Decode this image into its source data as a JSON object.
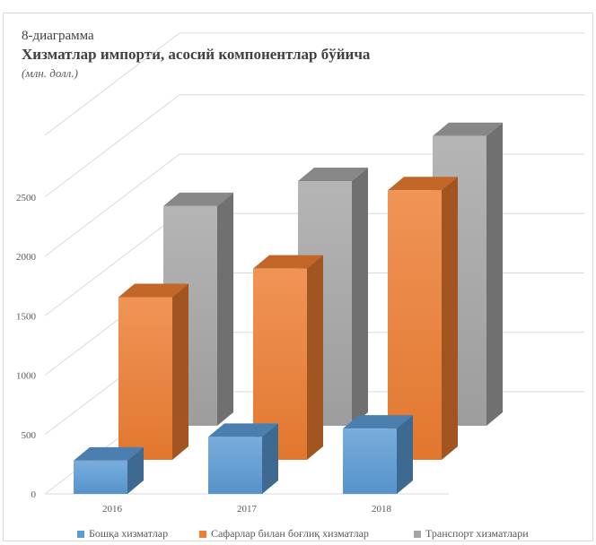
{
  "caption": "8-диаграмма",
  "chart_data": {
    "type": "bar",
    "title": "Хизматлар импорти, асосий компонентлар бўйича",
    "subtitle": "(млн. долл.)",
    "categories": [
      "2016",
      "2017",
      "2018"
    ],
    "series": [
      {
        "name": "Бошқа хизматлар",
        "values": [
          280,
          480,
          550
        ],
        "color": "#5B9BD5"
      },
      {
        "name": "Сафарлар билан боғлиқ хизматлар",
        "values": [
          1370,
          1610,
          2270
        ],
        "color": "#ED7D31"
      },
      {
        "name": "Транспорт хизматлари",
        "values": [
          1850,
          2060,
          2440
        ],
        "color": "#A5A5A5"
      }
    ],
    "yticks": [
      0,
      500,
      1000,
      1500,
      2000,
      2500
    ],
    "ylim": [
      0,
      2500
    ],
    "grid": true,
    "legend": "bottom"
  }
}
